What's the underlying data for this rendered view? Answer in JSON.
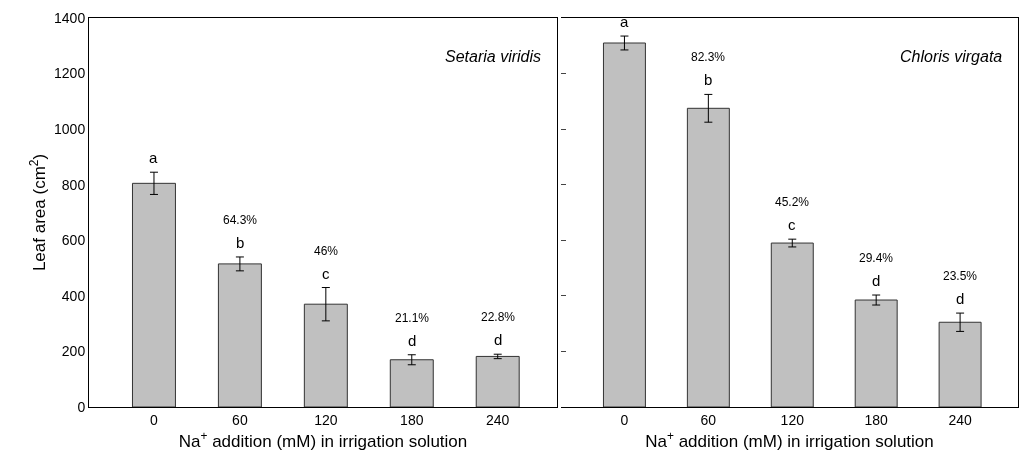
{
  "chart_data": [
    {
      "type": "bar",
      "categories": [
        "0",
        "60",
        "120",
        "180",
        "240"
      ],
      "values": [
        805,
        515,
        370,
        170,
        182
      ],
      "errors": [
        40,
        25,
        60,
        18,
        8
      ],
      "color": "#c0c0c0",
      "ylim": [
        0,
        1400
      ],
      "yticks": [
        0,
        200,
        400,
        600,
        800,
        1000,
        1200,
        1400
      ],
      "xlabel": "Na$^{+}$ addition (mM) in irrigation solution",
      "ylabel": "Leaf area (cm$^{2}$)",
      "annotations": [
        "Setaria viridis",
        "a",
        "64.3%\nb",
        "46%\nc",
        "21.1%\nd",
        "22.8%\nd"
      ]
    },
    {
      "type": "bar",
      "categories": [
        "0",
        "60",
        "120",
        "180",
        "240"
      ],
      "values": [
        1310,
        1075,
        590,
        385,
        305
      ],
      "errors": [
        25,
        50,
        14,
        18,
        33
      ],
      "color": "#c0c0c0",
      "ylim": [
        0,
        1400
      ],
      "yticks": [
        0,
        200,
        400,
        600,
        800,
        1000,
        1200,
        1400
      ],
      "tick_labels": "x",
      "xlabel": "Na$^{+}$ addition (mM) in irrigation solution",
      "annotations": [
        "Chloris virgata",
        "a",
        "82.3%\nb",
        "45.2%\nc",
        "29.4%\nd",
        "23.5%\nd"
      ]
    }
  ]
}
